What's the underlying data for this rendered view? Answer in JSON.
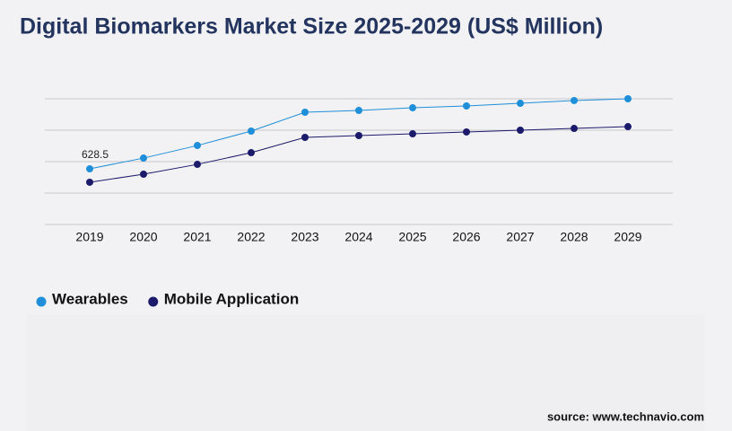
{
  "chart_data": {
    "type": "line",
    "title": "Digital Biomarkers Market Size 2025-2029 (US$ Million)",
    "categories": [
      "2019",
      "2020",
      "2021",
      "2022",
      "2023",
      "2024",
      "2025",
      "2026",
      "2027",
      "2028",
      "2029"
    ],
    "series": [
      {
        "name": "Wearables",
        "color": "#1e8fd8",
        "values": [
          628.5,
          750,
          892,
          1055,
          1268,
          1288,
          1318,
          1339,
          1369,
          1400,
          1420
        ],
        "value_labels": [
          "628.5",
          null,
          null,
          null,
          null,
          null,
          null,
          null,
          null,
          null,
          null
        ]
      },
      {
        "name": "Mobile Application",
        "color": "#1c1a6b",
        "values": [
          477,
          568,
          679,
          811,
          984,
          1004,
          1024,
          1045,
          1065,
          1085,
          1105
        ]
      }
    ],
    "ylim": [
      0,
      1420
    ],
    "yticks": [
      0,
      355,
      710,
      1065,
      1420
    ],
    "grid": true,
    "source": "source: www.technavio.com"
  }
}
